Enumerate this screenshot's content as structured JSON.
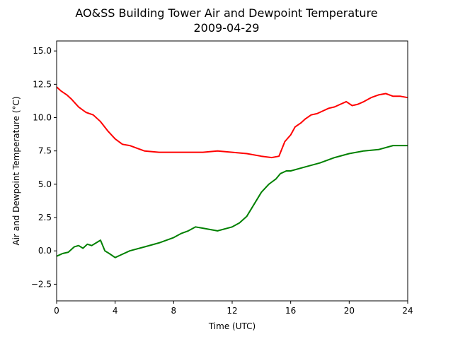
{
  "chart_data": {
    "type": "line",
    "title": "AO&SS Building Tower Air and Dewpoint Temperature",
    "subtitle": "2009-04-29",
    "xlabel": "Time (UTC)",
    "ylabel": "Air and Dewpoint Temperature (°C)",
    "xlim": [
      0,
      24
    ],
    "ylim": [
      -3.75,
      15.75
    ],
    "xticks": [
      0,
      4,
      8,
      12,
      16,
      20,
      24
    ],
    "yticks": [
      -2.5,
      0.0,
      2.5,
      5.0,
      7.5,
      10.0,
      12.5,
      15.0
    ],
    "ytick_labels": [
      "−2.5",
      "0.0",
      "2.5",
      "5.0",
      "7.5",
      "10.0",
      "12.5",
      "15.0"
    ],
    "grid": false,
    "series": [
      {
        "color": "#ff0000",
        "x": [
          0,
          0.3,
          0.7,
          1,
          1.5,
          2,
          2.5,
          3,
          3.5,
          4,
          4.5,
          5,
          5.5,
          6,
          7,
          8,
          9,
          10,
          11,
          12,
          13,
          14,
          14.7,
          15.2,
          15.6,
          16,
          16.3,
          16.7,
          17,
          17.4,
          17.8,
          18.2,
          18.6,
          19,
          19.4,
          19.8,
          20.2,
          20.6,
          21,
          21.5,
          22,
          22.5,
          23,
          23.5,
          24
        ],
        "y": [
          12.3,
          12.0,
          11.7,
          11.4,
          10.8,
          10.4,
          10.2,
          9.7,
          9.0,
          8.4,
          8.0,
          7.9,
          7.7,
          7.5,
          7.4,
          7.4,
          7.4,
          7.4,
          7.5,
          7.4,
          7.3,
          7.1,
          7.0,
          7.1,
          8.2,
          8.7,
          9.3,
          9.6,
          9.9,
          10.2,
          10.3,
          10.5,
          10.7,
          10.8,
          11.0,
          11.2,
          10.9,
          11.0,
          11.2,
          11.5,
          11.7,
          11.8,
          11.6,
          11.6,
          11.5
        ]
      },
      {
        "color": "#008000",
        "x": [
          0,
          0.4,
          0.8,
          1.2,
          1.5,
          1.8,
          2.1,
          2.4,
          2.7,
          3.0,
          3.3,
          3.6,
          4.0,
          4.4,
          5,
          6,
          7,
          8,
          8.5,
          9,
          9.5,
          10,
          11,
          12,
          12.5,
          13,
          13.5,
          14,
          14.5,
          15,
          15.3,
          15.7,
          16,
          17,
          18,
          19,
          20,
          21,
          22,
          23,
          24
        ],
        "y": [
          -0.4,
          -0.2,
          -0.1,
          0.3,
          0.4,
          0.2,
          0.5,
          0.4,
          0.6,
          0.8,
          0.0,
          -0.2,
          -0.5,
          -0.3,
          0.0,
          0.3,
          0.6,
          1.0,
          1.3,
          1.5,
          1.8,
          1.7,
          1.5,
          1.8,
          2.1,
          2.6,
          3.5,
          4.4,
          5.0,
          5.4,
          5.8,
          6.0,
          6.0,
          6.3,
          6.6,
          7.0,
          7.3,
          7.5,
          7.6,
          7.9,
          7.9
        ]
      }
    ]
  }
}
